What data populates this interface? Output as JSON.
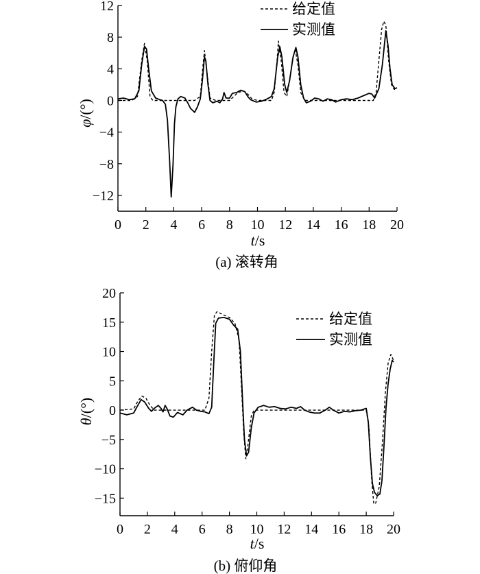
{
  "chart_data": [
    {
      "type": "line",
      "caption": "(a) 滚转角",
      "ylabel_symbol": "φ",
      "ylabel_unit": "/(°)",
      "xlabel_symbol": "t",
      "xlabel_unit": "/s",
      "xlim": [
        0,
        20
      ],
      "ylim": [
        -14,
        12
      ],
      "xticks": [
        0,
        2,
        4,
        6,
        8,
        10,
        12,
        14,
        16,
        18,
        20
      ],
      "yticks": [
        12,
        8,
        4,
        0,
        -4,
        -8,
        -12
      ],
      "ytick_labels": [
        "12",
        "8",
        "4",
        "0",
        "−4",
        "−8",
        "−12"
      ],
      "legend_position": "top-right",
      "series": [
        {
          "name": "给定值",
          "style": "dashed",
          "points": [
            [
              0,
              0
            ],
            [
              1.0,
              0
            ],
            [
              1.4,
              0.5
            ],
            [
              1.7,
              5.0
            ],
            [
              1.9,
              7.2
            ],
            [
              2.1,
              5.0
            ],
            [
              2.3,
              0.5
            ],
            [
              2.5,
              0
            ],
            [
              4.3,
              0
            ],
            [
              5.5,
              0
            ],
            [
              5.9,
              0.5
            ],
            [
              6.1,
              4.5
            ],
            [
              6.2,
              6.3
            ],
            [
              6.35,
              4.0
            ],
            [
              6.6,
              0.3
            ],
            [
              7.0,
              0
            ],
            [
              8.0,
              0
            ],
            [
              8.3,
              0.5
            ],
            [
              8.6,
              1.0
            ],
            [
              9.0,
              1.2
            ],
            [
              9.3,
              0.8
            ],
            [
              9.6,
              0.2
            ],
            [
              10.0,
              0
            ],
            [
              11.0,
              0
            ],
            [
              11.2,
              1.0
            ],
            [
              11.4,
              5.0
            ],
            [
              11.5,
              7.5
            ],
            [
              11.7,
              5.0
            ],
            [
              11.9,
              1.0
            ],
            [
              12.1,
              0.5
            ],
            [
              12.3,
              2.5
            ],
            [
              12.5,
              5.0
            ],
            [
              12.7,
              6.5
            ],
            [
              12.9,
              4.5
            ],
            [
              13.1,
              1.0
            ],
            [
              13.4,
              0
            ],
            [
              18.3,
              0
            ],
            [
              18.5,
              1.0
            ],
            [
              18.7,
              5.0
            ],
            [
              18.9,
              9.0
            ],
            [
              19.05,
              10.0
            ],
            [
              19.2,
              9.5
            ],
            [
              19.4,
              5.0
            ],
            [
              19.6,
              2.0
            ],
            [
              19.8,
              1.4
            ],
            [
              20.0,
              1.4
            ]
          ]
        },
        {
          "name": "实测值",
          "style": "solid",
          "points": [
            [
              0,
              0.2
            ],
            [
              0.4,
              0.3
            ],
            [
              0.8,
              0.1
            ],
            [
              1.2,
              0.2
            ],
            [
              1.5,
              1.2
            ],
            [
              1.7,
              4.5
            ],
            [
              1.9,
              6.8
            ],
            [
              2.05,
              6.5
            ],
            [
              2.2,
              4.0
            ],
            [
              2.4,
              1.2
            ],
            [
              2.7,
              0.3
            ],
            [
              3.0,
              0.1
            ],
            [
              3.2,
              0
            ],
            [
              3.4,
              -0.5
            ],
            [
              3.55,
              -2.5
            ],
            [
              3.7,
              -7.5
            ],
            [
              3.82,
              -12.2
            ],
            [
              3.95,
              -8.0
            ],
            [
              4.05,
              -3.0
            ],
            [
              4.15,
              -0.8
            ],
            [
              4.3,
              0.2
            ],
            [
              4.5,
              0.5
            ],
            [
              4.8,
              0.3
            ],
            [
              5.0,
              -0.3
            ],
            [
              5.2,
              -1.0
            ],
            [
              5.5,
              -1.5
            ],
            [
              5.7,
              -0.8
            ],
            [
              5.9,
              0.2
            ],
            [
              6.05,
              2.5
            ],
            [
              6.2,
              5.5
            ],
            [
              6.3,
              5.0
            ],
            [
              6.45,
              2.0
            ],
            [
              6.6,
              0
            ],
            [
              6.8,
              -0.3
            ],
            [
              7.1,
              -0.1
            ],
            [
              7.3,
              -0.3
            ],
            [
              7.5,
              0.2
            ],
            [
              7.6,
              1.0
            ],
            [
              7.75,
              0.3
            ],
            [
              8.0,
              0.3
            ],
            [
              8.2,
              0.9
            ],
            [
              8.5,
              1.0
            ],
            [
              8.8,
              1.3
            ],
            [
              9.1,
              1.1
            ],
            [
              9.3,
              0.5
            ],
            [
              9.5,
              0.1
            ],
            [
              9.9,
              -0.2
            ],
            [
              10.3,
              -0.1
            ],
            [
              10.7,
              0.2
            ],
            [
              11.0,
              0.5
            ],
            [
              11.2,
              1.5
            ],
            [
              11.45,
              5.5
            ],
            [
              11.6,
              6.8
            ],
            [
              11.75,
              5.5
            ],
            [
              11.95,
              2.0
            ],
            [
              12.1,
              1.0
            ],
            [
              12.3,
              2.5
            ],
            [
              12.55,
              5.5
            ],
            [
              12.75,
              6.7
            ],
            [
              12.9,
              5.5
            ],
            [
              13.1,
              2.0
            ],
            [
              13.3,
              0.3
            ],
            [
              13.5,
              -0.3
            ],
            [
              13.8,
              -0.1
            ],
            [
              14.1,
              0.3
            ],
            [
              14.4,
              0.2
            ],
            [
              14.7,
              -0.1
            ],
            [
              15.0,
              0.2
            ],
            [
              15.3,
              0.1
            ],
            [
              15.6,
              -0.2
            ],
            [
              16.0,
              0.1
            ],
            [
              16.4,
              0.2
            ],
            [
              16.8,
              0.1
            ],
            [
              17.2,
              0.3
            ],
            [
              17.6,
              0.6
            ],
            [
              18.0,
              0.9
            ],
            [
              18.2,
              0.8
            ],
            [
              18.4,
              0.3
            ],
            [
              18.7,
              1.5
            ],
            [
              18.95,
              4.5
            ],
            [
              19.2,
              8.8
            ],
            [
              19.35,
              7.0
            ],
            [
              19.5,
              4.0
            ],
            [
              19.65,
              2.0
            ],
            [
              19.85,
              1.5
            ],
            [
              20.0,
              1.6
            ]
          ]
        }
      ]
    },
    {
      "type": "line",
      "caption": "(b) 俯仰角",
      "ylabel_symbol": "θ",
      "ylabel_unit": "/(°)",
      "xlabel_symbol": "t",
      "xlabel_unit": "/s",
      "xlim": [
        0,
        20
      ],
      "ylim": [
        -18,
        20
      ],
      "xticks": [
        0,
        2,
        4,
        6,
        8,
        10,
        12,
        14,
        16,
        18,
        20
      ],
      "yticks": [
        20,
        15,
        10,
        5,
        0,
        -5,
        -10,
        -15
      ],
      "ytick_labels": [
        "20",
        "15",
        "10",
        "5",
        "0",
        "−5",
        "−10",
        "−15"
      ],
      "legend_position": "top-right",
      "series": [
        {
          "name": "给定值",
          "style": "dashed",
          "points": [
            [
              0,
              0
            ],
            [
              1.0,
              0.2
            ],
            [
              1.3,
              1.5
            ],
            [
              1.6,
              2.4
            ],
            [
              1.9,
              2.0
            ],
            [
              2.2,
              0.8
            ],
            [
              2.5,
              0
            ],
            [
              6.2,
              0
            ],
            [
              6.5,
              2.0
            ],
            [
              6.7,
              10.0
            ],
            [
              6.9,
              16.2
            ],
            [
              7.1,
              16.8
            ],
            [
              7.5,
              16.3
            ],
            [
              8.0,
              15.8
            ],
            [
              8.4,
              14.8
            ],
            [
              8.7,
              12.0
            ],
            [
              8.9,
              3.0
            ],
            [
              9.05,
              -4.0
            ],
            [
              9.2,
              -8.3
            ],
            [
              9.35,
              -6.0
            ],
            [
              9.6,
              -1.0
            ],
            [
              9.8,
              0
            ],
            [
              18.0,
              0
            ],
            [
              18.2,
              -3.0
            ],
            [
              18.4,
              -12.0
            ],
            [
              18.55,
              -16.0
            ],
            [
              18.7,
              -15.8
            ],
            [
              18.95,
              -13.0
            ],
            [
              19.2,
              -5.0
            ],
            [
              19.4,
              3.0
            ],
            [
              19.6,
              8.0
            ],
            [
              19.8,
              9.5
            ],
            [
              20.0,
              8.5
            ]
          ]
        },
        {
          "name": "实测值",
          "style": "solid",
          "points": [
            [
              0,
              -0.5
            ],
            [
              0.5,
              -0.8
            ],
            [
              1.0,
              -0.5
            ],
            [
              1.3,
              0.8
            ],
            [
              1.55,
              1.8
            ],
            [
              1.8,
              1.4
            ],
            [
              2.1,
              0.3
            ],
            [
              2.3,
              -0.2
            ],
            [
              2.5,
              0.3
            ],
            [
              2.8,
              0.8
            ],
            [
              3.0,
              0.3
            ],
            [
              3.15,
              -0.3
            ],
            [
              3.3,
              0.8
            ],
            [
              3.45,
              0.2
            ],
            [
              3.65,
              -1.0
            ],
            [
              3.9,
              -1.2
            ],
            [
              4.2,
              -0.4
            ],
            [
              4.6,
              -0.8
            ],
            [
              4.9,
              0
            ],
            [
              5.3,
              0.5
            ],
            [
              5.6,
              0
            ],
            [
              5.9,
              -0.2
            ],
            [
              6.2,
              -0.3
            ],
            [
              6.5,
              -0.6
            ],
            [
              6.7,
              0.5
            ],
            [
              6.85,
              8.0
            ],
            [
              7.0,
              14.8
            ],
            [
              7.2,
              15.7
            ],
            [
              7.6,
              15.8
            ],
            [
              8.0,
              15.5
            ],
            [
              8.3,
              14.5
            ],
            [
              8.6,
              13.8
            ],
            [
              8.8,
              10.0
            ],
            [
              8.95,
              2.0
            ],
            [
              9.1,
              -5.0
            ],
            [
              9.25,
              -7.8
            ],
            [
              9.4,
              -7.2
            ],
            [
              9.6,
              -3.0
            ],
            [
              9.8,
              -0.5
            ],
            [
              10.1,
              0.5
            ],
            [
              10.5,
              0.8
            ],
            [
              10.9,
              0.5
            ],
            [
              11.3,
              0.6
            ],
            [
              11.7,
              0.3
            ],
            [
              12.1,
              0.2
            ],
            [
              12.5,
              0.5
            ],
            [
              12.9,
              0.3
            ],
            [
              13.2,
              0.6
            ],
            [
              13.5,
              0
            ],
            [
              13.8,
              -0.3
            ],
            [
              14.2,
              -0.5
            ],
            [
              14.6,
              -0.5
            ],
            [
              15.0,
              0
            ],
            [
              15.3,
              0.5
            ],
            [
              15.6,
              0
            ],
            [
              16.0,
              -0.5
            ],
            [
              16.4,
              -0.2
            ],
            [
              16.8,
              -0.3
            ],
            [
              17.2,
              -0.1
            ],
            [
              17.6,
              0
            ],
            [
              18.0,
              0.3
            ],
            [
              18.15,
              -2.0
            ],
            [
              18.3,
              -8.0
            ],
            [
              18.45,
              -12.5
            ],
            [
              18.6,
              -14.0
            ],
            [
              18.8,
              -14.6
            ],
            [
              19.0,
              -14.3
            ],
            [
              19.15,
              -12.0
            ],
            [
              19.3,
              -6.0
            ],
            [
              19.45,
              0.5
            ],
            [
              19.6,
              4.5
            ],
            [
              19.75,
              7.0
            ],
            [
              19.9,
              8.5
            ],
            [
              20.0,
              8.2
            ]
          ]
        }
      ]
    }
  ]
}
